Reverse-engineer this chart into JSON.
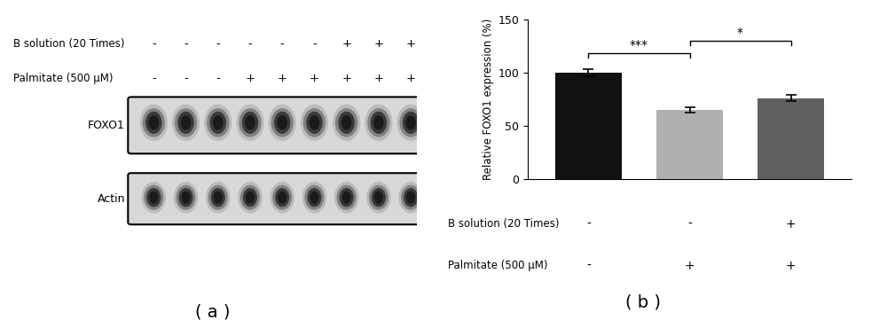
{
  "bar_values": [
    100,
    65,
    76
  ],
  "bar_errors": [
    3.5,
    2.5,
    2.8
  ],
  "bar_colors": [
    "#111111",
    "#b0b0b0",
    "#606060"
  ],
  "ylim": [
    0,
    150
  ],
  "yticks": [
    0,
    50,
    100,
    150
  ],
  "ylabel": "Relative FOXO1 expression (%)",
  "b_solution_labels": [
    "-",
    "-",
    "+"
  ],
  "palmitate_labels": [
    "-",
    "+",
    "+"
  ],
  "row1_label": "B solution (20 Times)",
  "row2_label": "Palmitate (500 μM)",
  "sig_bracket1_label": "***",
  "sig_bracket2_label": "*",
  "panel_a_label": "( a )",
  "panel_b_label": "( b )",
  "n_lanes": 9,
  "western_b_solution": [
    "-",
    "-",
    "-",
    "-",
    "-",
    "-",
    "+",
    "+",
    "+"
  ],
  "western_palmitate": [
    "-",
    "-",
    "-",
    "+",
    "+",
    "+",
    "+",
    "+",
    "+"
  ],
  "western_label_foxo1": "FOXO1",
  "western_label_actin": "Actin"
}
